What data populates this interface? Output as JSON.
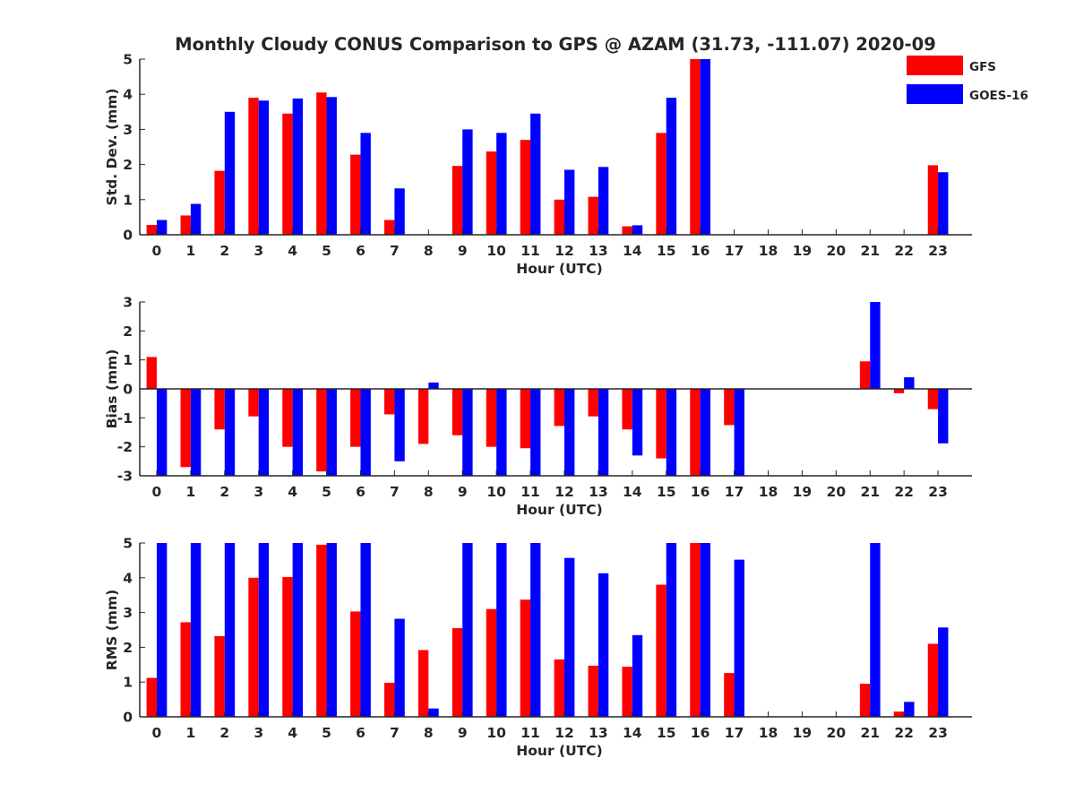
{
  "chart_data": {
    "title": "Monthly Cloudy CONUS Comparison to GPS @ AZAM (31.73, -111.07) 2020-09",
    "legend": {
      "placement": "top-right",
      "entries": [
        {
          "label": "GFS",
          "color": "#ff0000"
        },
        {
          "label": "GOES-16",
          "color": "#0000ff"
        }
      ]
    },
    "charts": [
      {
        "id": "std",
        "type": "bar",
        "ylabel": "Std. Dev. (mm)",
        "xlabel": "Hour (UTC)",
        "ylim": [
          0,
          5
        ],
        "yticks": [
          "0",
          "1",
          "2",
          "3",
          "4",
          "5"
        ],
        "categories": [
          "0",
          "1",
          "2",
          "3",
          "4",
          "5",
          "6",
          "7",
          "8",
          "9",
          "10",
          "11",
          "12",
          "13",
          "14",
          "15",
          "16",
          "17",
          "18",
          "19",
          "20",
          "21",
          "22",
          "23"
        ],
        "series": [
          {
            "name": "GFS",
            "color": "#ff0000",
            "values": [
              0.28,
              0.55,
              1.82,
              3.9,
              3.45,
              4.05,
              2.28,
              0.42,
              null,
              1.96,
              2.37,
              2.7,
              1.0,
              1.08,
              0.24,
              2.9,
              5.0,
              null,
              null,
              null,
              null,
              null,
              null,
              1.98
            ]
          },
          {
            "name": "GOES-16",
            "color": "#0000ff",
            "values": [
              0.42,
              0.88,
              3.5,
              3.82,
              3.88,
              3.92,
              2.9,
              1.32,
              null,
              3.0,
              2.9,
              3.45,
              1.85,
              1.93,
              0.27,
              3.9,
              5.0,
              null,
              null,
              null,
              null,
              null,
              null,
              1.78
            ]
          }
        ]
      },
      {
        "id": "bias",
        "type": "bar",
        "ylabel": "Bias (mm)",
        "xlabel": "Hour (UTC)",
        "ylim": [
          -3,
          3
        ],
        "yticks": [
          "-3",
          "-2",
          "-1",
          "0",
          "1",
          "2",
          "3"
        ],
        "categories": [
          "0",
          "1",
          "2",
          "3",
          "4",
          "5",
          "6",
          "7",
          "8",
          "9",
          "10",
          "11",
          "12",
          "13",
          "14",
          "15",
          "16",
          "17",
          "18",
          "19",
          "20",
          "21",
          "22",
          "23"
        ],
        "series": [
          {
            "name": "GFS",
            "color": "#ff0000",
            "values": [
              1.1,
              -2.7,
              -1.4,
              -0.95,
              -2.0,
              -2.85,
              -2.0,
              -0.88,
              -1.9,
              -1.6,
              -2.0,
              -2.05,
              -1.28,
              -0.95,
              -1.4,
              -2.4,
              -3.0,
              -1.25,
              null,
              null,
              null,
              0.95,
              -0.15,
              -0.7
            ]
          },
          {
            "name": "GOES-16",
            "color": "#0000ff",
            "values": [
              -3.0,
              -3.0,
              -3.0,
              -3.0,
              -3.0,
              -3.0,
              -3.0,
              -2.5,
              0.22,
              -3.0,
              -3.0,
              -3.0,
              -3.0,
              -3.0,
              -2.3,
              -3.0,
              -3.0,
              -3.0,
              null,
              null,
              null,
              3.0,
              0.4,
              -1.88
            ]
          }
        ]
      },
      {
        "id": "rms",
        "type": "bar",
        "ylabel": "RMS (mm)",
        "xlabel": "Hour (UTC)",
        "ylim": [
          0,
          5
        ],
        "yticks": [
          "0",
          "1",
          "2",
          "3",
          "4",
          "5"
        ],
        "categories": [
          "0",
          "1",
          "2",
          "3",
          "4",
          "5",
          "6",
          "7",
          "8",
          "9",
          "10",
          "11",
          "12",
          "13",
          "14",
          "15",
          "16",
          "17",
          "18",
          "19",
          "20",
          "21",
          "22",
          "23"
        ],
        "series": [
          {
            "name": "GFS",
            "color": "#ff0000",
            "values": [
              1.12,
              2.72,
              2.32,
              4.0,
              4.02,
              4.95,
              3.03,
              0.98,
              1.92,
              2.55,
              3.1,
              3.37,
              1.65,
              1.47,
              1.44,
              3.8,
              5.0,
              1.26,
              null,
              null,
              null,
              0.95,
              0.15,
              2.1
            ]
          },
          {
            "name": "GOES-16",
            "color": "#0000ff",
            "values": [
              5.0,
              5.0,
              5.0,
              5.0,
              5.0,
              5.0,
              5.0,
              2.82,
              0.24,
              5.0,
              5.0,
              5.0,
              4.57,
              4.13,
              2.35,
              5.0,
              5.0,
              4.52,
              null,
              null,
              null,
              5.0,
              0.43,
              2.57
            ]
          }
        ]
      }
    ]
  }
}
